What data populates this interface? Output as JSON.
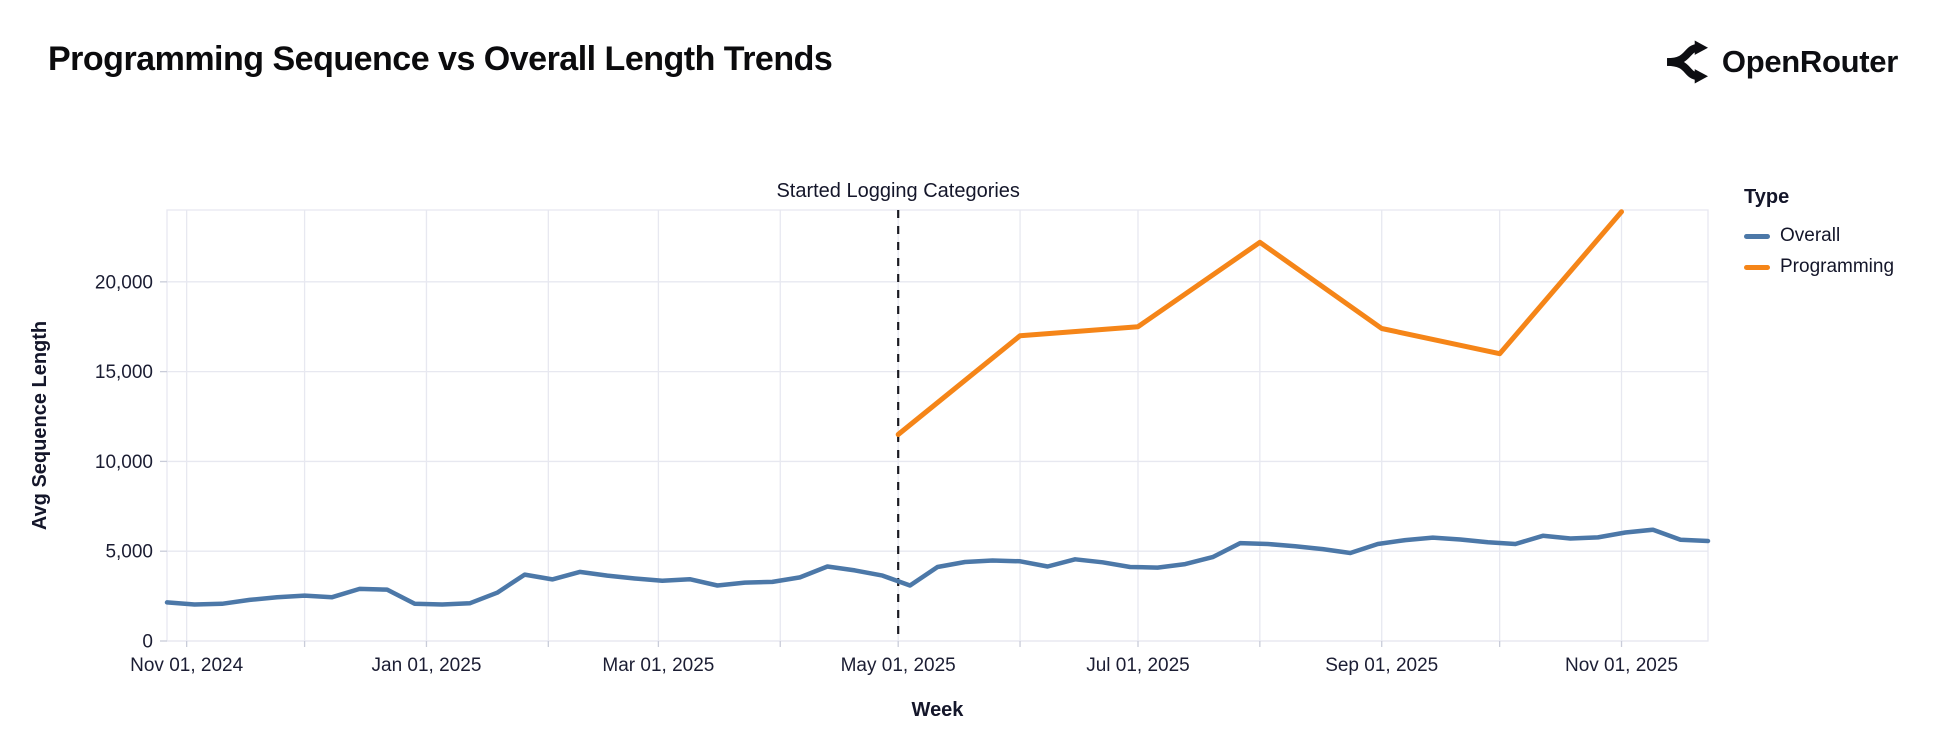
{
  "header": {
    "title": "Programming Sequence vs Overall Length Trends",
    "brand": "OpenRouter"
  },
  "legend": {
    "title": "Type",
    "items": [
      {
        "label": "Overall",
        "color": "#4c78a8"
      },
      {
        "label": "Programming",
        "color": "#f58518"
      }
    ]
  },
  "colors": {
    "overall_line": "#4c78a8",
    "programming_line": "#f58518",
    "gridline": "#e7e8f0",
    "plot_border": "#e7e8f0",
    "tick_mark": "#c9ccd9",
    "axis_text": "#1b1d33",
    "annotation_rule": "#1a1b22",
    "background": "#ffffff"
  },
  "chart_data": {
    "type": "line",
    "title": "Programming Sequence vs Overall Length Trends",
    "xlabel": "Week",
    "ylabel": "Avg Sequence Length",
    "grid": true,
    "legend_position": "right",
    "x_domain": [
      "2024-10-27",
      "2025-11-23"
    ],
    "y_domain": [
      0,
      24000
    ],
    "y_ticks": [
      {
        "value": 0,
        "label": "0"
      },
      {
        "value": 5000,
        "label": "5,000"
      },
      {
        "value": 10000,
        "label": "10,000"
      },
      {
        "value": 15000,
        "label": "15,000"
      },
      {
        "value": 20000,
        "label": "20,000"
      }
    ],
    "x_ticks": [
      {
        "date": "2024-11-01",
        "label": "Nov 01, 2024"
      },
      {
        "date": "2025-01-01",
        "label": "Jan 01, 2025"
      },
      {
        "date": "2025-03-01",
        "label": "Mar 01, 2025"
      },
      {
        "date": "2025-05-01",
        "label": "May 01, 2025"
      },
      {
        "date": "2025-07-01",
        "label": "Jul 01, 2025"
      },
      {
        "date": "2025-09-01",
        "label": "Sep 01, 2025"
      },
      {
        "date": "2025-11-01",
        "label": "Nov 01, 2025"
      }
    ],
    "x_gridlines": [
      "2024-11-01",
      "2024-12-01",
      "2025-01-01",
      "2025-02-01",
      "2025-03-01",
      "2025-04-01",
      "2025-05-01",
      "2025-06-01",
      "2025-07-01",
      "2025-08-01",
      "2025-09-01",
      "2025-10-01",
      "2025-11-01"
    ],
    "annotation": {
      "text": "Started Logging Categories",
      "date": "2025-05-01",
      "line_style": "dashed"
    },
    "series": [
      {
        "name": "Overall",
        "color": "#4c78a8",
        "frequency": "weekly",
        "dates": [
          "2024-10-27",
          "2024-11-03",
          "2024-11-10",
          "2024-11-17",
          "2024-11-24",
          "2024-12-01",
          "2024-12-08",
          "2024-12-15",
          "2024-12-22",
          "2024-12-29",
          "2025-01-05",
          "2025-01-12",
          "2025-01-19",
          "2025-01-26",
          "2025-02-02",
          "2025-02-09",
          "2025-02-16",
          "2025-02-23",
          "2025-03-02",
          "2025-03-09",
          "2025-03-16",
          "2025-03-23",
          "2025-03-30",
          "2025-04-06",
          "2025-04-13",
          "2025-04-20",
          "2025-04-27",
          "2025-05-04",
          "2025-05-11",
          "2025-05-18",
          "2025-05-25",
          "2025-06-01",
          "2025-06-08",
          "2025-06-15",
          "2025-06-22",
          "2025-06-29",
          "2025-07-06",
          "2025-07-13",
          "2025-07-20",
          "2025-07-27",
          "2025-08-03",
          "2025-08-10",
          "2025-08-17",
          "2025-08-24",
          "2025-08-31",
          "2025-09-07",
          "2025-09-14",
          "2025-09-21",
          "2025-09-28",
          "2025-10-05",
          "2025-10-12",
          "2025-10-19",
          "2025-10-26",
          "2025-11-02",
          "2025-11-09",
          "2025-11-16",
          "2025-11-23"
        ],
        "values": [
          2150,
          2030,
          2070,
          2290,
          2440,
          2530,
          2440,
          2900,
          2860,
          2070,
          2030,
          2100,
          2690,
          3700,
          3430,
          3850,
          3640,
          3480,
          3350,
          3440,
          3090,
          3250,
          3290,
          3540,
          4150,
          3930,
          3640,
          3090,
          4120,
          4400,
          4480,
          4440,
          4150,
          4550,
          4380,
          4120,
          4090,
          4280,
          4670,
          5450,
          5400,
          5280,
          5120,
          4900,
          5400,
          5620,
          5760,
          5650,
          5500,
          5400,
          5860,
          5710,
          5770,
          6040,
          6200,
          5640,
          5570
        ]
      },
      {
        "name": "Programming",
        "color": "#f58518",
        "frequency": "monthly",
        "dates": [
          "2025-05-01",
          "2025-06-01",
          "2025-07-01",
          "2025-08-01",
          "2025-09-01",
          "2025-10-01",
          "2025-11-01"
        ],
        "values": [
          11500,
          17000,
          17500,
          22200,
          17400,
          16000,
          23900
        ]
      }
    ]
  }
}
